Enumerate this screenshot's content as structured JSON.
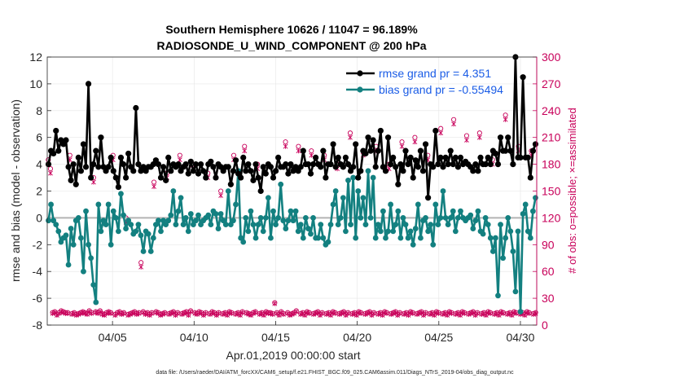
{
  "chart_data": {
    "type": "line",
    "title_line1": "Southern Hemisphere 10626 / 11047 = 96.189%",
    "title_line2": "RADIOSONDE_U_WIND_COMPONENT @ 200 hPa",
    "xlabel": "Apr.01,2019 00:00:00 start",
    "ylabel": "rmse and bias (model - observation)",
    "y2label": "# of obs: o=possible; ×=assimilated",
    "footnote": "data file: /Users/raeder/DAI/ATM_forcXX/CAM6_setup/f.e21.FHIST_BGC.f09_025.CAM6assim.011/Diags_NTrS_2019-04/obs_diag_output.nc",
    "xlim": [
      1,
      31
    ],
    "ylim": [
      -8,
      12
    ],
    "y2lim": [
      0,
      300
    ],
    "grid": true,
    "x_ticks": [
      {
        "value": 5,
        "label": "04/05"
      },
      {
        "value": 10,
        "label": "04/10"
      },
      {
        "value": 15,
        "label": "04/15"
      },
      {
        "value": 20,
        "label": "04/20"
      },
      {
        "value": 25,
        "label": "04/25"
      },
      {
        "value": 30,
        "label": "04/30"
      }
    ],
    "y_ticks": [
      "12",
      "10",
      "8",
      "6",
      "4",
      "2",
      "0",
      "-2",
      "-4",
      "-6",
      "-8"
    ],
    "y2_ticks": [
      "300",
      "270",
      "240",
      "210",
      "180",
      "150",
      "120",
      "90",
      "60",
      "30",
      "0"
    ],
    "colors": {
      "rmse": "#000000",
      "bias": "#138080",
      "obs": "#c8005a",
      "zero_line": "#b3b3b3",
      "legend_text": "#1a5ce6",
      "axis_right": "#c8005a"
    },
    "series": [
      {
        "name": "rmse grand pr = 4.351",
        "axis": "left",
        "values": [
          4.0,
          5.0,
          4.8,
          6.5,
          5.0,
          5.8,
          5.5,
          5.8,
          3.8,
          2.8,
          4.0,
          2.5,
          4.5,
          3.5,
          5.5,
          3.8,
          10.0,
          3.0,
          4.0,
          5.0,
          3.8,
          6.0,
          3.8,
          3.5,
          3.8,
          4.5,
          3.5,
          3.0,
          2.3,
          4.5,
          4.0,
          3.0,
          4.8,
          3.8,
          3.5,
          8.2,
          4.0,
          3.5,
          3.8,
          3.5,
          3.8,
          3.8,
          4.0,
          4.3,
          4.0,
          3.0,
          3.8,
          2.8,
          4.5,
          3.5,
          4.0,
          3.8,
          4.0,
          3.5,
          3.8,
          4.0,
          3.3,
          4.2,
          3.5,
          4.0,
          3.3,
          4.0,
          3.5,
          3.0,
          4.0,
          4.2,
          3.8,
          3.0,
          4.0,
          3.8,
          3.5,
          3.8,
          3.8,
          2.5,
          3.5,
          4.3,
          3.3,
          3.0,
          4.5,
          3.5,
          4.0,
          3.5,
          2.8,
          4.0,
          3.0,
          2.0,
          3.8,
          3.3,
          4.0,
          3.8,
          3.0,
          3.5,
          4.5,
          3.8,
          3.8,
          4.0,
          3.3,
          4.0,
          3.5,
          3.8,
          3.5,
          3.8,
          5.0,
          4.0,
          4.0,
          3.3,
          4.0,
          4.5,
          4.0,
          3.8,
          5.0,
          3.0,
          4.0,
          4.0,
          5.5,
          3.8,
          4.5,
          4.0,
          3.8,
          4.5,
          4.0,
          3.5,
          3.8,
          5.5,
          3.0,
          3.5,
          5.0,
          4.8,
          6.0,
          5.0,
          5.8,
          3.8,
          5.0,
          6.5,
          3.8,
          3.5,
          6.0,
          4.0,
          4.5,
          3.8,
          2.5,
          4.0,
          3.5,
          5.0,
          4.0,
          4.5,
          3.0,
          4.3,
          3.8,
          5.0,
          3.5,
          5.5,
          1.5,
          4.0,
          3.8,
          6.5,
          4.0,
          4.5,
          3.8,
          4.5,
          4.0,
          5.0,
          4.0,
          4.5,
          3.8,
          4.5,
          4.0,
          4.2,
          4.0,
          3.8,
          3.5,
          4.0,
          3.5,
          4.5,
          4.0,
          4.0,
          4.5,
          4.0,
          5.0,
          4.8,
          4.0,
          6.0,
          5.0,
          5.0,
          6.0,
          5.0,
          4.0,
          12.0,
          4.5,
          4.5,
          10.5,
          4.5,
          4.5,
          3.0,
          5.0,
          5.5
        ]
      },
      {
        "name": "bias grand pr = -0.55494",
        "axis": "left",
        "values": [
          -0.2,
          1.0,
          -0.2,
          -0.5,
          -1.0,
          -1.8,
          -1.5,
          -1.3,
          -3.5,
          -0.8,
          -2.0,
          -0.2,
          0.0,
          -1.5,
          -4.0,
          0.5,
          -2.0,
          -3.0,
          -5.0,
          -6.3,
          1.0,
          -1.0,
          -0.2,
          -0.5,
          1.0,
          -2.0,
          0.5,
          0.0,
          -1.0,
          1.8,
          0.2,
          -0.8,
          -0.2,
          -0.5,
          -1.2,
          -1.0,
          -0.5,
          -1.3,
          -2.5,
          -1.0,
          -1.2,
          -2.5,
          -1.5,
          -0.5,
          -0.2,
          -1.0,
          -0.2,
          -0.5,
          -0.2,
          0.2,
          2.0,
          -0.5,
          0.5,
          1.5,
          -0.5,
          0.0,
          -1.0,
          0.3,
          -0.5,
          -0.2,
          0.2,
          -0.5,
          -0.2,
          0.0,
          0.2,
          -0.5,
          0.5,
          0.3,
          -0.8,
          0.3,
          -0.2,
          -0.5,
          2.0,
          -0.5,
          -0.2,
          1.0,
          3.5,
          -1.5,
          -1.8,
          0.0,
          -1.0,
          0.5,
          -0.5,
          -1.5,
          -0.5,
          0.0,
          -1.0,
          0.0,
          1.5,
          -1.5,
          0.5,
          -0.5,
          0.0,
          2.5,
          -0.2,
          -0.8,
          -0.2,
          0.5,
          -0.2,
          0.5,
          -1.0,
          -0.5,
          -1.5,
          0.0,
          -0.8,
          -1.2,
          0.0,
          -1.5,
          -1.5,
          -0.5,
          -1.5,
          -2.0,
          -1.8,
          -0.5,
          1.0,
          2.0,
          -0.5,
          0.0,
          1.5,
          -1.0,
          2.8,
          -0.5,
          3.0,
          -1.5,
          2.0,
          0.0,
          1.5,
          -0.5,
          3.5,
          0.0,
          3.0,
          -1.5,
          -0.5,
          -1.0,
          0.5,
          -1.5,
          -1.0,
          1.0,
          -1.0,
          -0.5,
          0.5,
          -1.5,
          0.0,
          -0.5,
          -1.5,
          -1.0,
          -2.0,
          -0.8,
          1.0,
          -1.5,
          -0.2,
          0.0,
          -1.0,
          -0.5,
          -2.0,
          1.0,
          -0.5,
          0.0,
          2.0,
          0.0,
          -0.5,
          0.0,
          0.5,
          -1.0,
          0.0,
          0.5,
          0.0,
          -0.2,
          0.0,
          0.2,
          -0.8,
          -0.2,
          0.5,
          -1.0,
          -1.2,
          0.0,
          -0.5,
          -1.5,
          -2.5,
          -1.5,
          -5.8,
          -0.5,
          -3.0,
          -1.5,
          0.0,
          -1.0,
          -2.5,
          -5.5,
          -1.0,
          -7.0,
          0.3,
          1.0,
          -1.0,
          -1.5,
          0.5,
          1.5
        ]
      },
      {
        "name": "# obs possible",
        "axis": "right",
        "marker": "circle",
        "values": [
          185,
          175,
          14,
          15,
          12,
          14,
          16,
          15,
          14,
          14,
          190,
          13,
          14,
          12,
          13,
          14,
          15,
          14,
          13,
          16,
          14,
          165,
          15,
          14,
          16,
          13,
          12,
          14,
          15,
          14,
          190,
          12,
          14,
          15,
          13,
          14,
          120,
          12,
          13,
          14,
          15,
          13,
          14,
          70,
          15,
          13,
          14,
          12,
          14,
          160,
          15,
          14,
          12,
          13,
          14,
          170,
          13,
          14,
          15,
          12,
          14,
          190,
          13,
          14,
          15,
          12,
          16,
          180,
          14,
          13,
          15,
          14,
          12,
          14,
          170,
          13,
          15,
          14,
          12,
          14,
          150,
          13,
          14,
          12,
          15,
          14,
          190,
          13,
          14,
          12,
          15,
          200,
          14,
          13,
          12,
          14,
          15,
          180,
          13,
          14,
          12,
          15,
          14,
          14,
          13,
          25,
          14,
          12,
          15,
          13,
          205,
          14,
          12,
          13,
          14,
          16,
          200,
          13,
          14,
          12,
          15,
          14,
          195,
          13,
          14,
          15,
          12,
          14,
          190,
          13,
          14,
          12,
          15,
          14,
          180,
          13,
          14,
          15,
          12,
          14,
          215,
          13,
          14,
          12,
          15,
          14,
          195,
          13,
          14,
          15,
          12,
          14,
          200,
          13,
          14,
          12,
          15,
          14,
          180,
          13,
          14,
          15,
          12,
          14,
          205,
          13,
          14,
          12,
          15,
          14,
          210,
          13,
          14,
          15,
          12,
          14,
          190,
          13,
          14,
          12,
          15,
          14,
          220,
          13,
          14,
          12,
          15,
          14,
          230,
          13,
          14,
          12,
          15,
          14,
          212,
          13,
          14,
          15,
          12,
          14,
          215,
          13,
          14,
          12,
          15,
          14,
          185,
          13,
          14,
          12,
          15,
          14,
          235,
          13,
          14,
          12,
          15,
          14,
          200,
          13,
          14,
          12,
          15,
          14,
          195,
          13,
          14
        ]
      },
      {
        "name": "# obs assimilated",
        "axis": "right",
        "marker": "cross",
        "values": [
          180,
          170,
          13,
          14,
          11,
          13,
          15,
          14,
          13,
          13,
          185,
          12,
          13,
          11,
          12,
          13,
          14,
          13,
          12,
          15,
          13,
          160,
          14,
          13,
          15,
          12,
          11,
          13,
          14,
          13,
          185,
          11,
          13,
          14,
          12,
          13,
          115,
          11,
          12,
          13,
          14,
          12,
          13,
          65,
          14,
          12,
          13,
          11,
          13,
          155,
          14,
          13,
          11,
          12,
          13,
          165,
          12,
          13,
          14,
          11,
          13,
          185,
          12,
          13,
          14,
          11,
          15,
          175,
          13,
          12,
          14,
          13,
          11,
          13,
          165,
          12,
          14,
          13,
          11,
          13,
          145,
          12,
          13,
          11,
          14,
          13,
          185,
          12,
          13,
          11,
          14,
          195,
          13,
          12,
          11,
          13,
          14,
          175,
          12,
          13,
          11,
          14,
          13,
          13,
          12,
          24,
          13,
          11,
          14,
          12,
          200,
          13,
          11,
          12,
          13,
          15,
          195,
          12,
          13,
          11,
          14,
          13,
          190,
          12,
          13,
          14,
          11,
          13,
          185,
          12,
          13,
          11,
          14,
          13,
          175,
          12,
          13,
          14,
          11,
          13,
          210,
          12,
          13,
          11,
          14,
          13,
          190,
          12,
          13,
          14,
          11,
          13,
          195,
          12,
          13,
          11,
          14,
          13,
          175,
          12,
          13,
          14,
          11,
          13,
          200,
          12,
          13,
          11,
          14,
          13,
          205,
          12,
          13,
          14,
          11,
          13,
          185,
          12,
          13,
          11,
          14,
          13,
          215,
          12,
          13,
          11,
          14,
          13,
          225,
          12,
          13,
          11,
          14,
          13,
          207,
          12,
          13,
          14,
          11,
          13,
          210,
          12,
          13,
          11,
          14,
          13,
          180,
          12,
          13,
          11,
          14,
          13,
          230,
          12,
          13,
          11,
          14,
          13,
          195,
          12,
          13,
          11,
          14,
          13,
          190,
          12,
          13
        ]
      }
    ],
    "legend": [
      {
        "label": "rmse grand pr = 4.351",
        "series": 0
      },
      {
        "label": "bias grand pr = -0.55494",
        "series": 1
      }
    ]
  }
}
